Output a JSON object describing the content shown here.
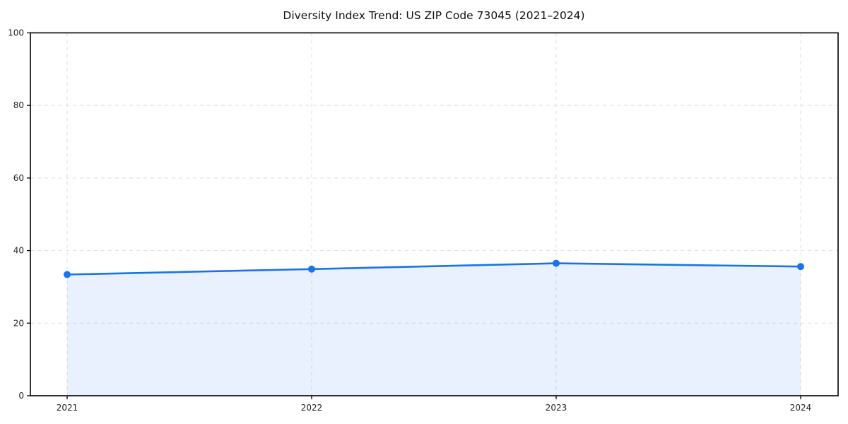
{
  "chart_data": {
    "type": "area",
    "title": "Diversity Index Trend: US ZIP Code 73045 (2021–2024)",
    "categories": [
      "2021",
      "2022",
      "2023",
      "2024"
    ],
    "values": [
      33.4,
      34.9,
      36.5,
      35.6
    ],
    "xlabel": "",
    "ylabel": "",
    "ylim": [
      0,
      100
    ],
    "y_ticks": [
      0,
      20,
      40,
      60,
      80,
      100
    ],
    "grid": true,
    "grid_style": "dashed",
    "legend_position": "none",
    "marker": "circle",
    "colors": {
      "line": "#1a73e8",
      "marker": "#1a73e8",
      "fill": "rgba(26,115,232,0.10)",
      "gridline": "#e2e2e2",
      "axis": "#000000",
      "background": "#ffffff",
      "text": "#111111"
    }
  }
}
